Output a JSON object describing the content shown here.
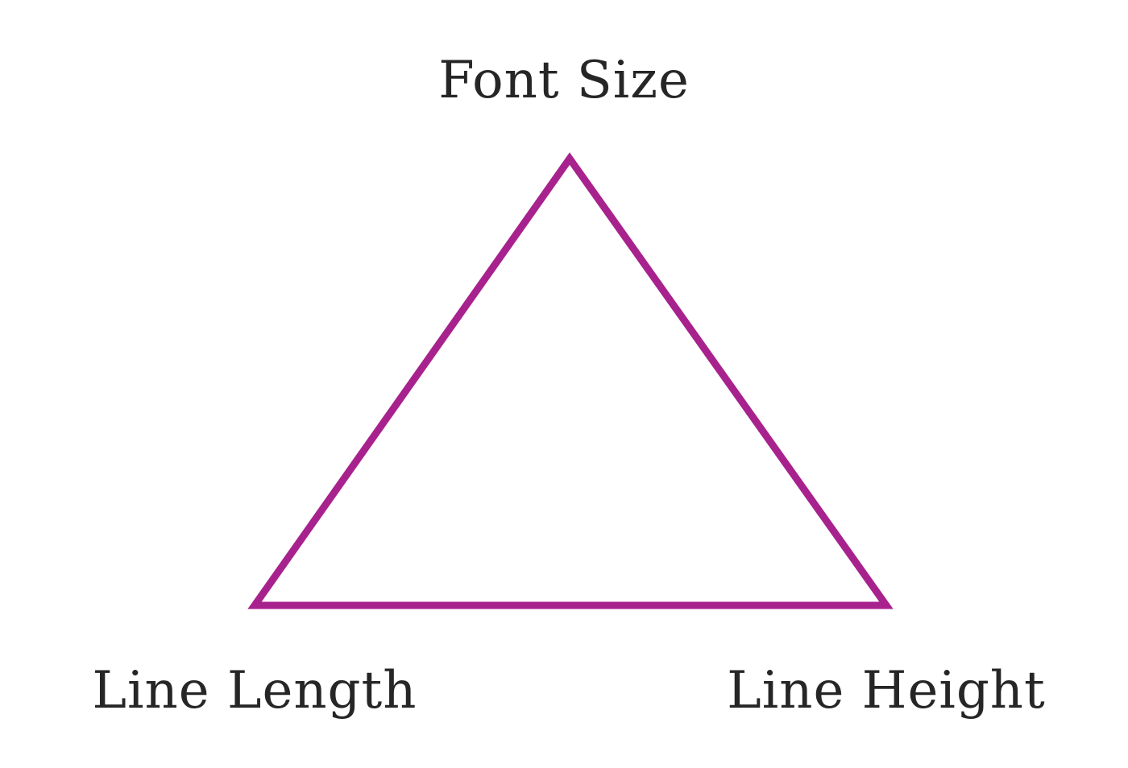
{
  "diagram": {
    "top_label": "Font Size",
    "left_label": "Line Length",
    "right_label": "Line Height",
    "triangle_color": "#a8228e",
    "text_color": "#262626"
  }
}
